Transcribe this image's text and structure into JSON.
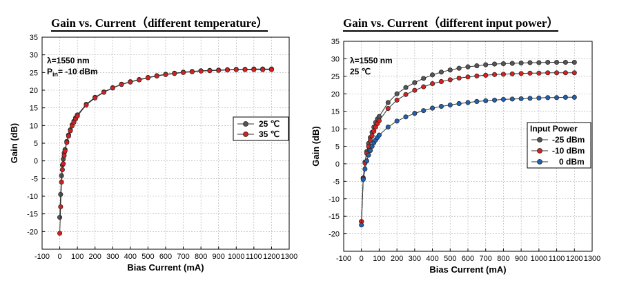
{
  "titles": {
    "left": "Gain vs. Current（different temperature）",
    "right": "Gain vs. Current（different input power）"
  },
  "notes": {
    "left_line1": "λ=1550 nm",
    "left_line2_prefix": "P",
    "left_line2_sub": "in",
    "left_line2_suffix": "= -10 dBm",
    "right_line1": "λ=1550 nm",
    "right_line2": "25 ℃"
  },
  "legend_right_title": "Input Power",
  "colors": {
    "black_series": "#555555",
    "red_series": "#d62020",
    "blue_series": "#2060b0",
    "line": "#333333",
    "grid": "#aaaaaa"
  },
  "chart_data": [
    {
      "type": "line",
      "title": "Gain vs. Current（different temperature）",
      "xlabel": "Bias Current (mA)",
      "ylabel": "Gain (dB)",
      "xlim": [
        -100,
        1300
      ],
      "ylim": [
        -25,
        35
      ],
      "x_ticks": [
        -100,
        0,
        100,
        200,
        300,
        400,
        500,
        600,
        700,
        800,
        900,
        1000,
        1100,
        1200,
        1300
      ],
      "y_ticks": [
        -20,
        -15,
        -10,
        -5,
        0,
        5,
        10,
        15,
        20,
        25,
        30,
        35
      ],
      "grid": true,
      "legend_position": "middle-right",
      "x": [
        0,
        5,
        10,
        15,
        20,
        25,
        30,
        40,
        50,
        60,
        70,
        80,
        90,
        100,
        150,
        200,
        250,
        300,
        350,
        400,
        450,
        500,
        550,
        600,
        650,
        700,
        750,
        800,
        850,
        900,
        950,
        1000,
        1050,
        1100,
        1150,
        1200
      ],
      "series": [
        {
          "name": "25 ℃",
          "values": [
            -16.0,
            -9.5,
            -4.2,
            -1.2,
            0.5,
            2.2,
            3.2,
            5.5,
            7.3,
            8.8,
            10.2,
            11.2,
            12.2,
            13.0,
            16.0,
            18.0,
            19.5,
            20.7,
            21.7,
            22.4,
            23.0,
            23.6,
            24.1,
            24.5,
            24.8,
            25.1,
            25.3,
            25.5,
            25.6,
            25.7,
            25.8,
            25.9,
            25.9,
            26.0,
            26.0,
            26.0
          ]
        },
        {
          "name": "35 ℃",
          "values": [
            -20.5,
            -13.0,
            -6.0,
            -2.5,
            -0.8,
            1.5,
            2.8,
            5.2,
            7.0,
            8.5,
            9.9,
            10.9,
            11.9,
            12.7,
            15.8,
            17.8,
            19.4,
            20.6,
            21.6,
            22.3,
            22.9,
            23.5,
            24.0,
            24.4,
            24.7,
            25.0,
            25.2,
            25.4,
            25.5,
            25.6,
            25.7,
            25.8,
            25.8,
            25.8,
            25.8,
            25.8
          ]
        }
      ]
    },
    {
      "type": "line",
      "title": "Gain vs. Current（different input power）",
      "xlabel": "Bias Current (mA)",
      "ylabel": "Gain (dB)",
      "xlim": [
        -100,
        1300
      ],
      "ylim": [
        -25,
        35
      ],
      "x_ticks": [
        -100,
        0,
        100,
        200,
        300,
        400,
        500,
        600,
        700,
        800,
        900,
        1000,
        1100,
        1200,
        1300
      ],
      "y_ticks": [
        -20,
        -15,
        -10,
        -5,
        0,
        5,
        10,
        15,
        20,
        25,
        30,
        35
      ],
      "grid": true,
      "legend_position": "bottom-right",
      "legend_title": "Input Power",
      "x": [
        0,
        10,
        20,
        30,
        40,
        50,
        60,
        70,
        80,
        90,
        100,
        150,
        200,
        250,
        300,
        350,
        400,
        450,
        500,
        550,
        600,
        650,
        700,
        750,
        800,
        850,
        900,
        950,
        1000,
        1050,
        1100,
        1150,
        1200
      ],
      "series": [
        {
          "name": "-25 dBm",
          "values": [
            -16.5,
            -4.0,
            0.5,
            3.5,
            5.8,
            7.5,
            9.0,
            10.5,
            11.8,
            12.8,
            13.5,
            17.5,
            20.0,
            21.8,
            23.2,
            24.4,
            25.4,
            26.2,
            26.8,
            27.3,
            27.7,
            28.0,
            28.3,
            28.5,
            28.6,
            28.7,
            28.8,
            28.9,
            28.9,
            29.0,
            29.0,
            29.0,
            29.0
          ]
        },
        {
          "name": "-10 dBm",
          "values": [
            -16.5,
            -4.2,
            0.2,
            3.0,
            5.0,
            6.7,
            8.0,
            9.3,
            10.5,
            11.5,
            12.3,
            15.8,
            18.2,
            19.8,
            21.0,
            22.0,
            22.9,
            23.5,
            24.0,
            24.5,
            24.8,
            25.1,
            25.3,
            25.5,
            25.6,
            25.7,
            25.8,
            25.9,
            25.9,
            26.0,
            26.0,
            26.0,
            26.0
          ]
        },
        {
          "name": "0 dBm",
          "values": [
            -17.5,
            -4.5,
            -1.5,
            0.8,
            2.5,
            3.8,
            5.0,
            6.0,
            6.8,
            7.5,
            8.2,
            10.5,
            12.2,
            13.4,
            14.4,
            15.2,
            15.9,
            16.4,
            16.8,
            17.2,
            17.5,
            17.8,
            18.0,
            18.2,
            18.4,
            18.5,
            18.6,
            18.7,
            18.8,
            18.9,
            18.9,
            19.0,
            19.0
          ]
        }
      ]
    }
  ]
}
